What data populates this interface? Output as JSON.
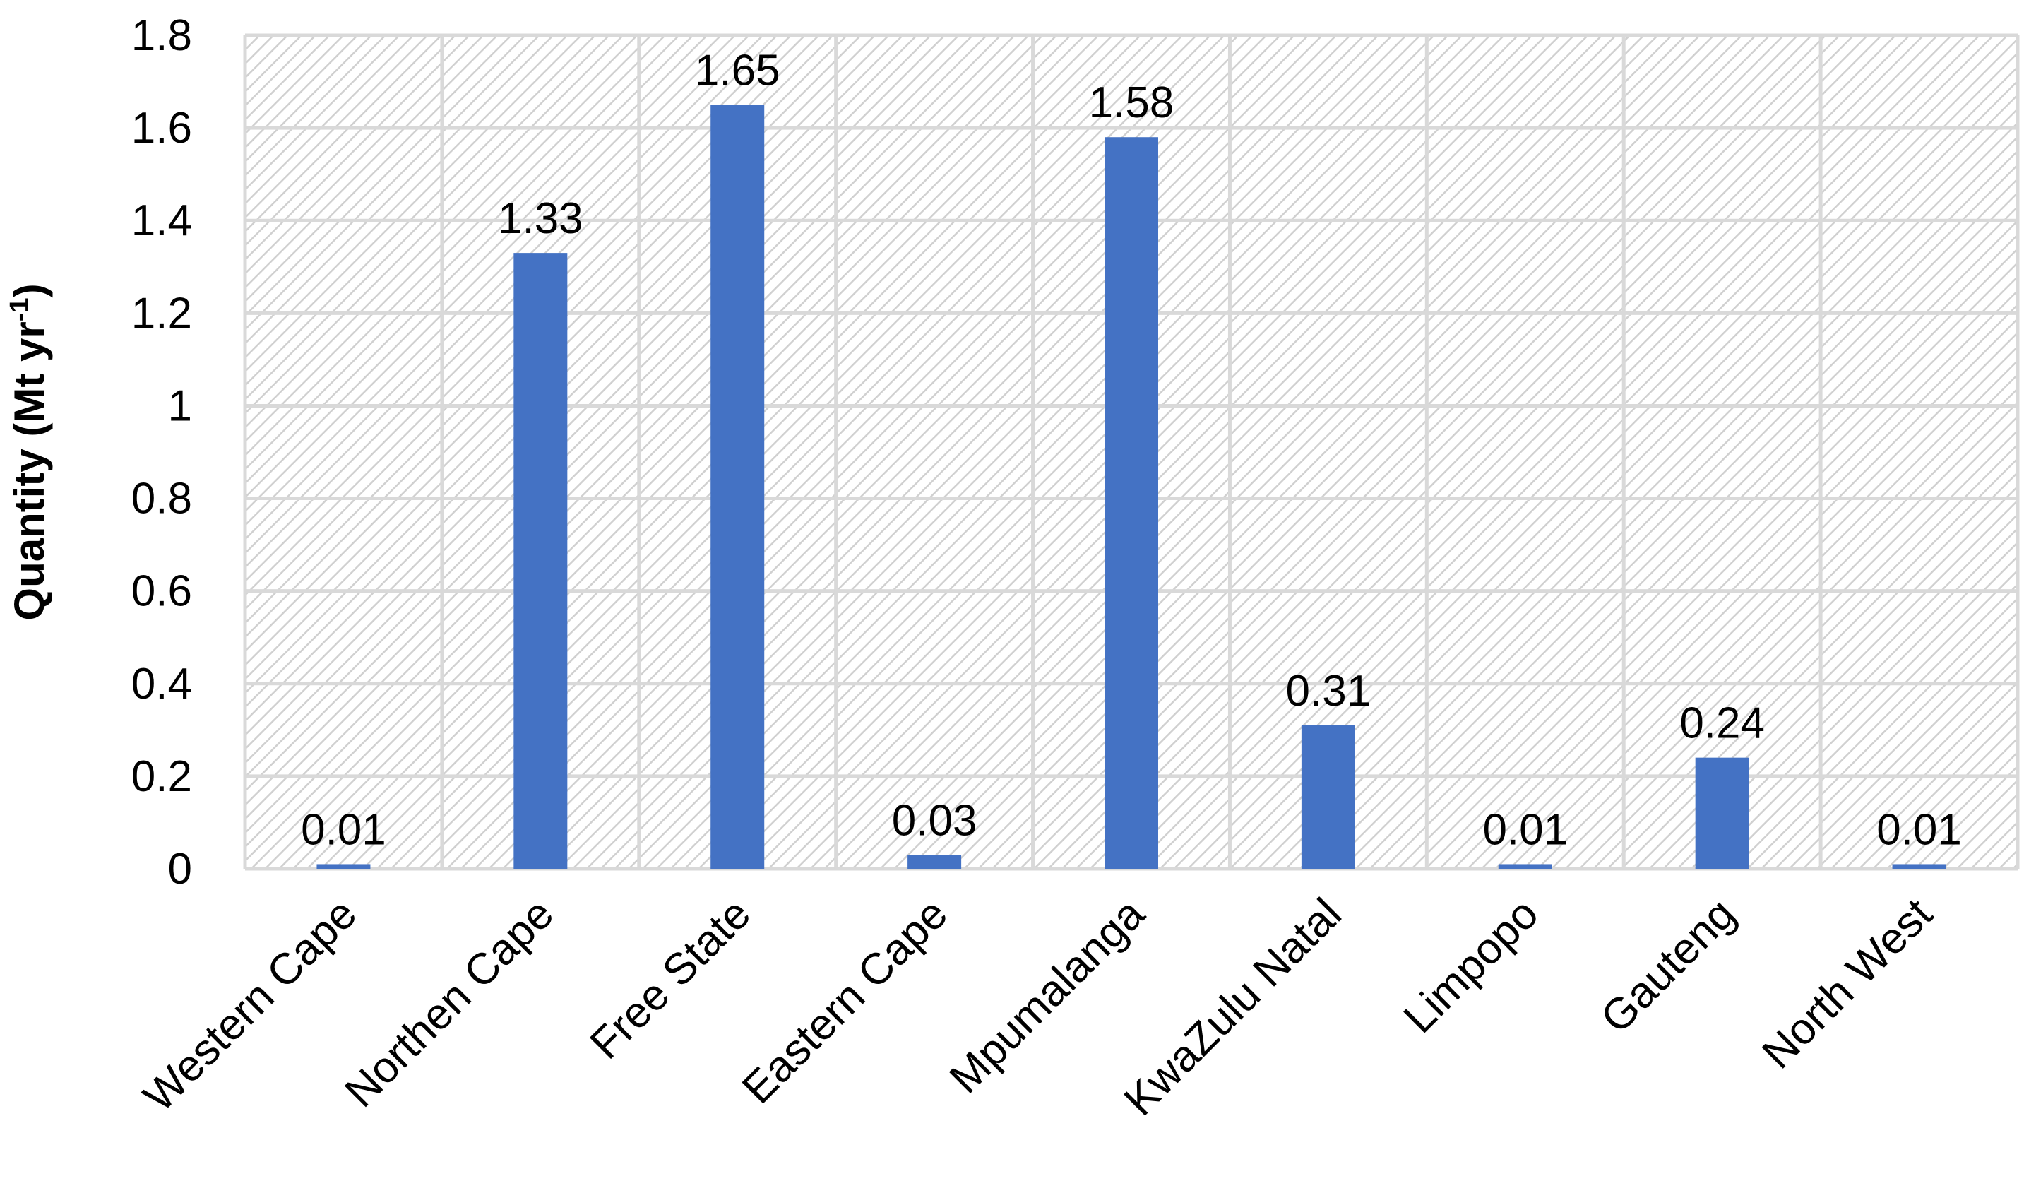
{
  "chart_data": {
    "type": "bar",
    "categories": [
      "Western Cape",
      "Northen Cape",
      "Free State",
      "Eastern Cape",
      "Mpumalanga",
      "KwaZulu Natal",
      "Limpopo",
      "Gauteng",
      "North West"
    ],
    "values": [
      0.01,
      1.33,
      1.65,
      0.03,
      1.58,
      0.31,
      0.01,
      0.24,
      0.01
    ],
    "data_labels": [
      "0.01",
      "1.33",
      "1.65",
      "0.03",
      "1.58",
      "0.31",
      "0.01",
      "0.24",
      "0.01"
    ],
    "title": "",
    "xlabel": "",
    "ylabel": {
      "main": "Quantity (Mt yr",
      "superscript": "-1",
      "close": ")"
    },
    "ylim": [
      0,
      1.8
    ],
    "yticks": [
      0,
      0.2,
      0.4,
      0.6,
      0.8,
      1,
      1.2,
      1.4,
      1.6,
      1.8
    ],
    "ytick_labels": [
      "0",
      "0.2",
      "0.4",
      "0.6",
      "0.8",
      "1",
      "1.2",
      "1.4",
      "1.6",
      "1.8"
    ],
    "grid": true,
    "legend": "none",
    "plot_background": "hatched light gray",
    "colors": {
      "bar": "#4472C4",
      "grid": "#D9D9D9",
      "hatch": "#D0D0D0"
    }
  }
}
